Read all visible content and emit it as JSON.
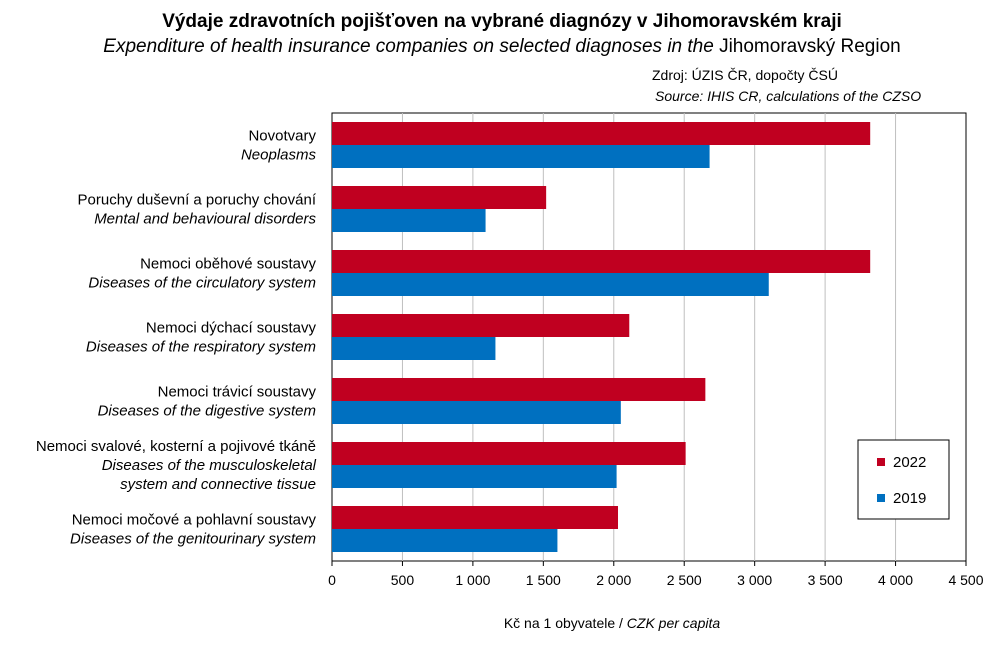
{
  "chart_data": {
    "type": "bar",
    "orientation": "horizontal",
    "title": "Výdaje zdravotních pojišťoven na vybrané diagnózy v Jihomoravském kraji",
    "subtitle_italic": "Expenditure of health insurance companies on selected diagnoses in the",
    "subtitle_region": "Jihomoravský Region",
    "source": "Zdroj: ÚZIS ČR, dopočty ČSÚ",
    "source_en": "Source: IHIS CR, calculations of the CZSO",
    "xlabel": "Kč na 1 obyvatele",
    "xlabel_sep": " / ",
    "xlabel_en": "CZK per capita",
    "xlim": [
      0,
      4500
    ],
    "xticks": [
      0,
      500,
      1000,
      1500,
      2000,
      2500,
      3000,
      3500,
      4000,
      4500
    ],
    "xtick_labels": [
      "0",
      "500",
      "1 000",
      "1 500",
      "2 000",
      "2 500",
      "3 000",
      "3 500",
      "4 000",
      "4 500"
    ],
    "grid": true,
    "legend_position": "bottom-right",
    "categories": [
      {
        "cz": "Novotvary",
        "en": [
          "Neoplasms"
        ]
      },
      {
        "cz": "Poruchy duševní a poruchy chování",
        "en": [
          "Mental and behavioural disorders"
        ]
      },
      {
        "cz": "Nemoci oběhové soustavy",
        "en": [
          "Diseases of the circulatory system"
        ]
      },
      {
        "cz": "Nemoci dýchací soustavy",
        "en": [
          "Diseases of the respiratory system"
        ]
      },
      {
        "cz": "Nemoci trávicí soustavy",
        "en": [
          "Diseases of the digestive system"
        ]
      },
      {
        "cz": "Nemoci svalové, kosterní a pojivové tkáně",
        "en": [
          "Diseases of the musculoskeletal",
          "system and connective tissue"
        ]
      },
      {
        "cz": "Nemoci močové a pohlavní soustavy",
        "en": [
          "Diseases of the genitourinary system"
        ]
      }
    ],
    "series": [
      {
        "name": "2022",
        "color": "#c00020",
        "values": [
          3820,
          1520,
          3820,
          2110,
          2650,
          2510,
          2030
        ]
      },
      {
        "name": "2019",
        "color": "#0070c0",
        "values": [
          2680,
          1090,
          3100,
          1160,
          2050,
          2020,
          1600
        ]
      }
    ]
  }
}
